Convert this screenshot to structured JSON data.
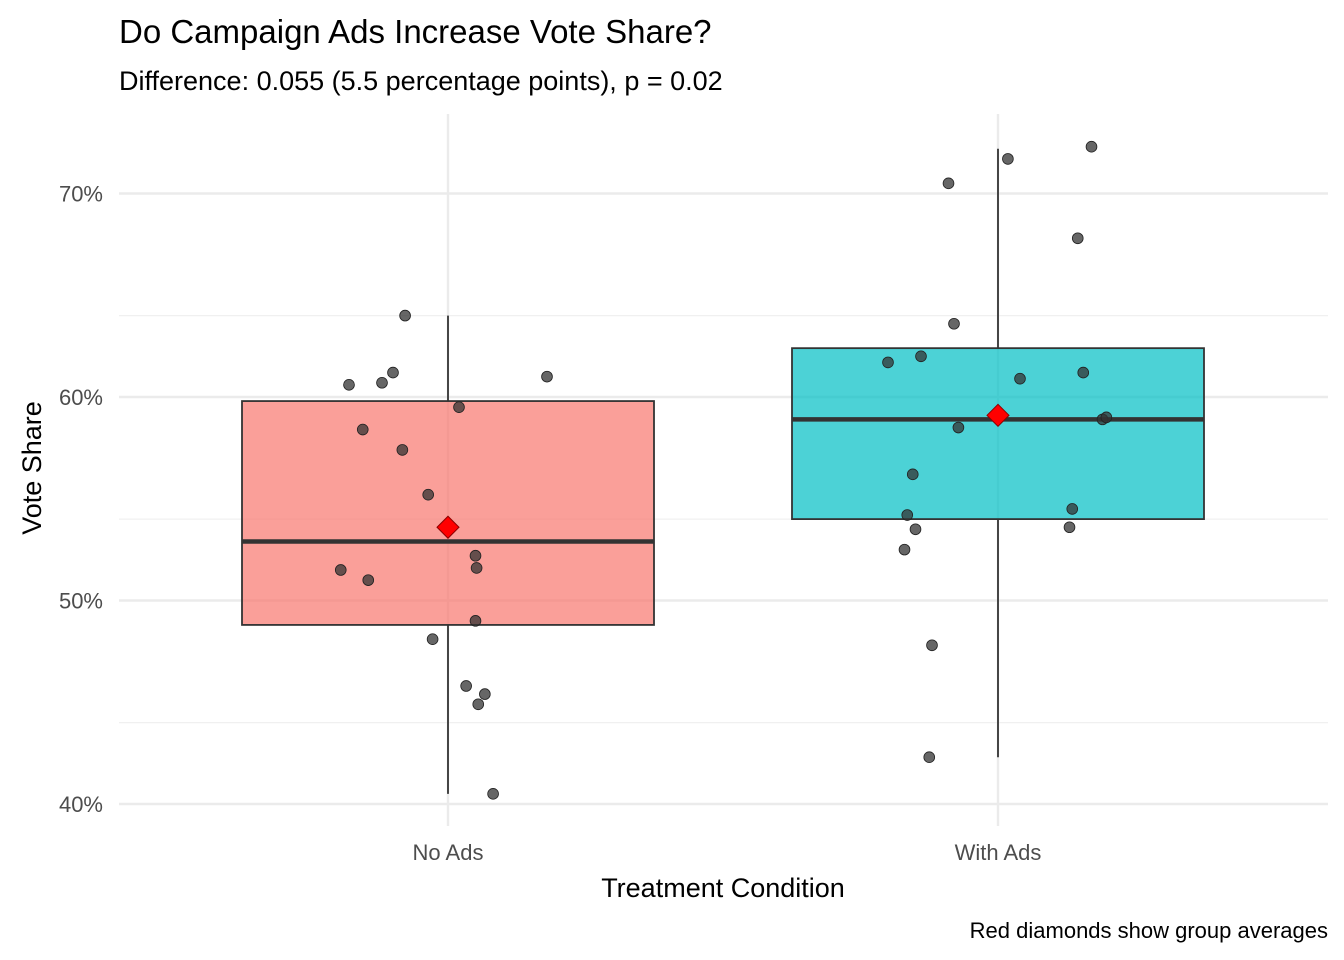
{
  "chart_data": {
    "type": "boxplot",
    "title": "Do Campaign Ads Increase Vote Share?",
    "subtitle": "Difference: 0.055 (5.5 percentage points), p = 0.02",
    "caption": "Red diamonds show group averages",
    "xlabel": "Treatment Condition",
    "ylabel": "Vote Share",
    "ylim": [
      0.39,
      0.74
    ],
    "yticks": [
      0.4,
      0.5,
      0.6,
      0.7
    ],
    "ytick_labels": [
      "40%",
      "50%",
      "60%",
      "70%"
    ],
    "grid": true,
    "colors": {
      "No Ads": "#f8766d",
      "With Ads": "#00bfc4",
      "mean": "#ff0000",
      "points": "#333333"
    },
    "categories": [
      "No Ads",
      "With Ads"
    ],
    "groups": [
      {
        "name": "No Ads",
        "whisker_low": 0.405,
        "q1": 0.488,
        "median": 0.529,
        "q3": 0.598,
        "whisker_high": 0.64,
        "mean": 0.536,
        "points": [
          {
            "x": -0.195,
            "y": 0.515
          },
          {
            "x": -0.18,
            "y": 0.606
          },
          {
            "x": -0.155,
            "y": 0.584
          },
          {
            "x": -0.145,
            "y": 0.51
          },
          {
            "x": -0.12,
            "y": 0.607
          },
          {
            "x": -0.1,
            "y": 0.612
          },
          {
            "x": -0.083,
            "y": 0.574
          },
          {
            "x": -0.078,
            "y": 0.64
          },
          {
            "x": -0.036,
            "y": 0.552
          },
          {
            "x": -0.028,
            "y": 0.481
          },
          {
            "x": 0.02,
            "y": 0.595
          },
          {
            "x": 0.033,
            "y": 0.458
          },
          {
            "x": 0.05,
            "y": 0.49
          },
          {
            "x": 0.05,
            "y": 0.522
          },
          {
            "x": 0.052,
            "y": 0.516
          },
          {
            "x": 0.055,
            "y": 0.449
          },
          {
            "x": 0.067,
            "y": 0.454
          },
          {
            "x": 0.082,
            "y": 0.405
          },
          {
            "x": 0.18,
            "y": 0.61
          }
        ]
      },
      {
        "name": "With Ads",
        "whisker_low": 0.423,
        "q1": 0.54,
        "median": 0.589,
        "q3": 0.624,
        "whisker_high": 0.722,
        "mean": 0.591,
        "points": [
          {
            "x": -0.2,
            "y": 0.617
          },
          {
            "x": -0.17,
            "y": 0.525
          },
          {
            "x": -0.165,
            "y": 0.542
          },
          {
            "x": -0.155,
            "y": 0.562
          },
          {
            "x": -0.15,
            "y": 0.535
          },
          {
            "x": -0.14,
            "y": 0.62
          },
          {
            "x": -0.125,
            "y": 0.423
          },
          {
            "x": -0.12,
            "y": 0.478
          },
          {
            "x": -0.09,
            "y": 0.705
          },
          {
            "x": -0.08,
            "y": 0.636
          },
          {
            "x": -0.072,
            "y": 0.585
          },
          {
            "x": 0.018,
            "y": 0.717
          },
          {
            "x": 0.04,
            "y": 0.609
          },
          {
            "x": 0.13,
            "y": 0.536
          },
          {
            "x": 0.135,
            "y": 0.545
          },
          {
            "x": 0.145,
            "y": 0.678
          },
          {
            "x": 0.155,
            "y": 0.612
          },
          {
            "x": 0.17,
            "y": 0.723
          },
          {
            "x": 0.19,
            "y": 0.589
          },
          {
            "x": 0.197,
            "y": 0.59
          }
        ]
      }
    ]
  }
}
